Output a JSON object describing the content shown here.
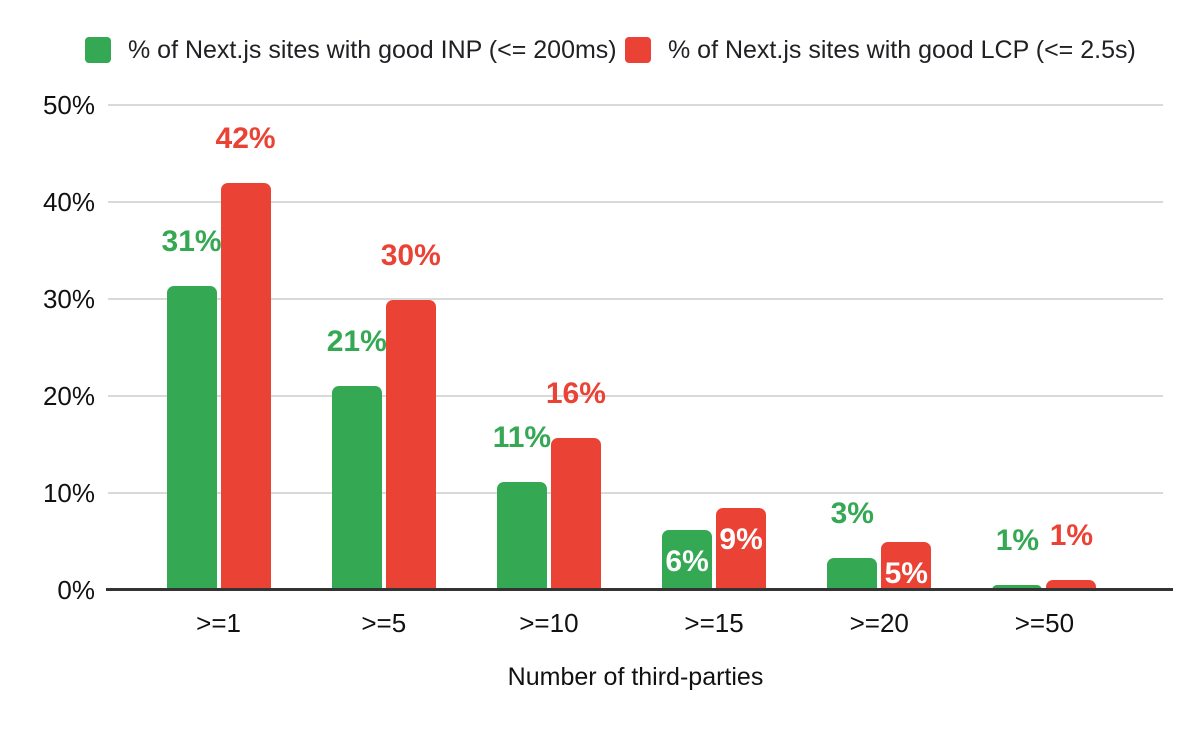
{
  "chart_data": {
    "type": "bar",
    "title": "",
    "categories": [
      ">=1",
      ">=5",
      ">=10",
      ">=15",
      ">=20",
      ">=50"
    ],
    "series": [
      {
        "name": "% of Next.js sites with good INP (<= 200ms)",
        "color": "#34a853",
        "values": [
          31,
          21,
          11,
          6,
          3,
          1
        ],
        "precise_heights_pct": [
          31.3,
          21.0,
          11.1,
          6.2,
          3.3,
          0.5
        ],
        "data_labels": [
          "31%",
          "21%",
          "11%",
          "6%",
          "3%",
          "1%"
        ],
        "label_inside": [
          false,
          false,
          false,
          true,
          false,
          false
        ]
      },
      {
        "name": "% of Next.js sites with good LCP (<= 2.5s)",
        "color": "#ea4335",
        "values": [
          42,
          30,
          16,
          9,
          5,
          1
        ],
        "precise_heights_pct": [
          42.0,
          29.9,
          15.7,
          8.5,
          5.0,
          1.0
        ],
        "data_labels": [
          "42%",
          "30%",
          "16%",
          "9%",
          "5%",
          "1%"
        ],
        "label_inside": [
          false,
          false,
          false,
          true,
          true,
          false
        ]
      }
    ],
    "xlabel": "Number of third-parties",
    "ylabel": "",
    "ylim": [
      0,
      50
    ],
    "yticks": [
      "0%",
      "10%",
      "20%",
      "30%",
      "40%",
      "50%"
    ],
    "grid": "horizontal-only",
    "legend_position": "top",
    "colors": {
      "grid": "#d9d9d9",
      "axis_line": "#333333",
      "axis_text": "#111111",
      "legend_text": "#202124",
      "inside_label_text": "#ffffff",
      "background": "#ffffff"
    }
  }
}
